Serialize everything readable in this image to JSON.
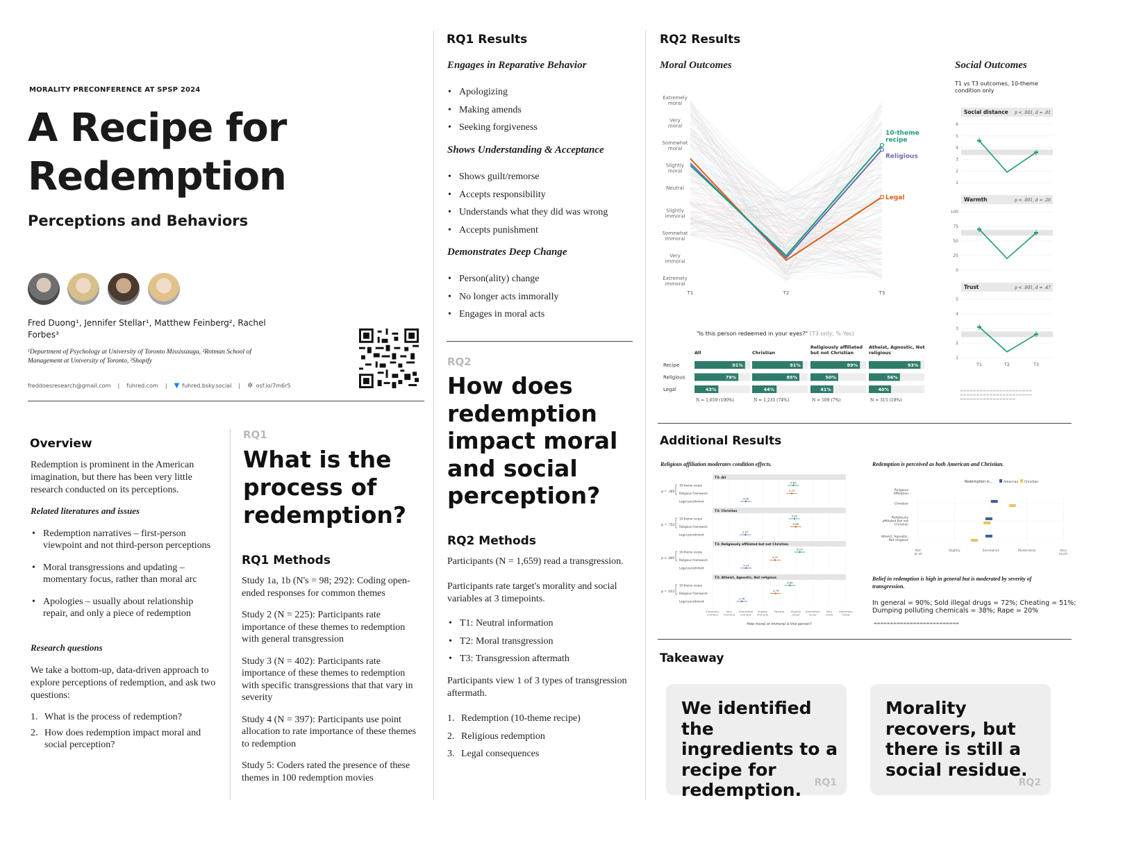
{
  "header": {
    "conference": "MORALITY PRECONFERENCE AT SPSP 2024",
    "title_line1": "A Recipe for",
    "title_line2": "Redemption",
    "subtitle": "Perceptions and Behaviors",
    "authors_line1": "Fred Duong¹, Jennifer Stellar¹, Matthew Feinberg², Rachel",
    "authors_line2": "Forbes³",
    "affil_line1": "¹Department of Psychology at University of Toronto Mississauga, ²Rotman School of",
    "affil_line2": "Management at University of Toronto, ³Shopify",
    "contacts": [
      "freddoesresearch@gmail.com",
      "fuhred.com",
      "fuhred.bsky.social",
      "osf.io/7m6r5"
    ]
  },
  "overview": {
    "heading": "Overview",
    "intro": "Redemption is prominent in the American imagination, but there has been very little research conducted on its perceptions.",
    "related_heading": "Related literatures and issues",
    "related": [
      "Redemption narratives – first-person viewpoint and not third-person perceptions",
      "Moral transgressions and updating – momentary focus, rather than moral arc",
      "Apologies – usually about relationship repair, and only a piece of redemption"
    ],
    "rq_heading": "Research questions",
    "rq_intro": "We take a bottom-up, data-driven approach to explore perceptions of redemption, and ask two questions:",
    "questions": [
      "What is the process of redemption?",
      "How does redemption impact moral and social perception?"
    ]
  },
  "rq1": {
    "tag": "RQ1",
    "question_lines": [
      "What is the",
      "process of",
      "redemption?"
    ],
    "methods_heading": "RQ1 Methods",
    "studies": [
      "Study 1a, 1b (N's = 98; 292): Coding open-ended responses for common themes",
      "Study 2 (N = 225): Participants rate importance of these themes to redemption with general transgression",
      "Study 3 (N = 402): Participants rate importance of these themes to redemption with specific transgressions that that vary in severity",
      "Study 4 (N = 397): Participants use point allocation to rate importance of these themes to redemption",
      "Study 5: Coders rated the presence of these themes in 100 redemption movies"
    ]
  },
  "rq1_results": {
    "heading": "RQ1 Results",
    "groups": [
      {
        "title": "Engages in Reparative Behavior",
        "items": [
          "Apologizing",
          "Making amends",
          "Seeking forgiveness"
        ]
      },
      {
        "title": "Shows Understanding & Acceptance",
        "items": [
          "Shows guilt/remorse",
          "Accepts responsibility",
          "Understands what they did was wrong",
          "Accepts punishment"
        ]
      },
      {
        "title": "Demonstrates Deep Change",
        "items": [
          "Person(ality) change",
          "No longer acts immorally",
          "Engages in moral acts"
        ]
      }
    ]
  },
  "rq2": {
    "tag": "RQ2",
    "question_lines": [
      "How does",
      "redemption",
      "impact moral",
      "and social",
      "perception?"
    ],
    "methods_heading": "RQ2 Methods",
    "p1": "Participants (N = 1,659) read a transgression.",
    "p2": "Participants rate target's morality and social variables at 3 timepoints.",
    "timepoints": [
      "T1: Neutral information",
      "T2: Moral transgression",
      "T3: Transgression aftermath"
    ],
    "p3": "Participants view 1 of 3 types of transgression aftermath.",
    "types": [
      "Redemption (10-theme recipe)",
      "Religious redemption",
      "Legal consequences"
    ]
  },
  "rq2_results": {
    "heading": "RQ2 Results",
    "moral_heading": "Moral Outcomes",
    "social_heading": "Social Outcomes",
    "social_note": "T1 vs T3 outcomes, 10-theme condition only",
    "moral_y_labels": [
      "Extremely moral",
      "Very moral",
      "Somewhat moral",
      "Slightly moral",
      "Neutral",
      "Slightly immoral",
      "Somewhat immoral",
      "Very immoral",
      "Extremely immoral"
    ],
    "moral_x_labels": [
      "T1",
      "T2",
      "T3"
    ],
    "line_labels": {
      "recipe": "10-theme recipe",
      "religious": "Religious",
      "legal": "Legal"
    },
    "colors": {
      "recipe": "#1e9b78",
      "religious": "#6e6ab3",
      "legal": "#d9601a",
      "bar": "#2f7c6b"
    },
    "bar_question": "\"Is this person redeemed in your eyes?\"",
    "bar_question_note": " (T3 only; % Yes)",
    "bar_rows": [
      "Recipe",
      "Religious",
      "Legal"
    ],
    "bar_groups": [
      {
        "name": "All",
        "values": [
          "91%",
          "79%",
          "43%"
        ],
        "n": "N = 1,659 (100%)"
      },
      {
        "name": "Christian",
        "values": [
          "91%",
          "85%",
          "44%"
        ],
        "n": "N = 1,235 (74%)"
      },
      {
        "name": "Religiously affiliated but not Christian",
        "values": [
          "89%",
          "50%",
          "41%"
        ],
        "n": "N = 109 (7%)"
      },
      {
        "name": "Atheist, Agnostic, Not religious",
        "values": [
          "93%",
          "56%",
          "40%"
        ],
        "n": "N = 315 (19%)"
      }
    ],
    "social_panels": [
      {
        "title": "Social distance",
        "stat": "p < .001, d = .81"
      },
      {
        "title": "Warmth",
        "stat": "p < .001, d = .26"
      },
      {
        "title": "Trust",
        "stat": "p < .001, d = .47"
      }
    ],
    "social_x": [
      "T1",
      "T2",
      "T3"
    ]
  },
  "additional": {
    "heading": "Additional Results",
    "left_caption": "Religious affiliation moderates condition effects.",
    "left_panels": [
      "T3: All",
      "T3: Christian",
      "T3: Religiously affiliated but not Christian",
      "T3: Atheist, Agnostic, Not religious"
    ],
    "left_rows": [
      "10-theme recipe",
      "Religious framework",
      "Legal punishment"
    ],
    "left_values": [
      [
        "5.85",
        "5.75",
        "3.00"
      ],
      [
        "5.91",
        "5.99",
        "2.97"
      ],
      [
        "6.23",
        "4.75",
        "3.01"
      ],
      [
        "5.64",
        "4.79",
        "2.76"
      ]
    ],
    "left_x_caption": "How moral or immoral is this person?",
    "right_caption": "Redemption is perceived as both American and Christian.",
    "right_legend": [
      "Redemption is...",
      "American",
      "Christian"
    ],
    "right_rows": [
      "Christian",
      "Religiously affiliated but not Christian",
      "Atheist, Agnostic, Not religious"
    ],
    "right_x": [
      "Not at all",
      "Slightly",
      "Somewhat",
      "Moderately",
      "Very much"
    ],
    "belief_caption": "Belief in redemption is high in general but is moderated by severity of transgression.",
    "belief_line1": "In general = 90%; Sold illegal drugs = 72%; Cheating = 51%;",
    "belief_line2": "Dumping polluting chemicals = 38%; Rape = 20%"
  },
  "takeaway": {
    "heading": "Takeaway",
    "cards": [
      {
        "lines": [
          "We identified the",
          "ingredients to a",
          "recipe for",
          "redemption."
        ],
        "tag": "RQ1"
      },
      {
        "lines": [
          "Morality",
          "recovers, but",
          "there is still a",
          "social residue."
        ],
        "tag": "RQ2"
      }
    ]
  }
}
